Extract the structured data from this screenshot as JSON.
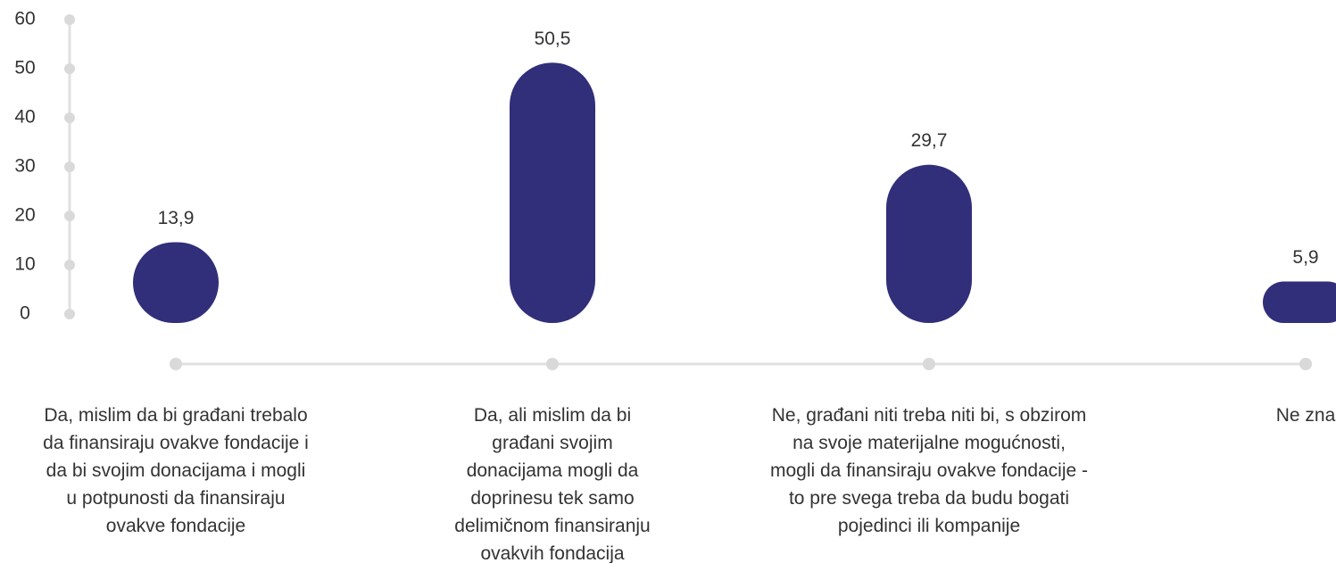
{
  "chart_data": {
    "type": "bar",
    "categories": [
      "Da, mislim da bi građani trebalo\nda finansiraju ovakve fondacije i\nda bi svojim donacijama i mogli\nu potpunosti da finansiraju\novakve fondacije",
      "Da, ali mislim da bi\ngrađani svojim\ndonacijama mogli da\ndoprinesu tek samo\ndelimičnom finansiranju\novakvih fondacija",
      "Ne, građani niti treba niti bi, s obzirom\nna svoje materijalne mogućnosti,\nmogli da finansiraju ovakve fondacije -\nto pre svega treba da budu bogati\npojedinci ili kompanije",
      "Ne zna"
    ],
    "values": [
      13.9,
      50.5,
      29.7,
      5.9
    ],
    "value_labels": [
      "13,9",
      "50,5",
      "29,7",
      "5,9"
    ],
    "color": "#312e7a",
    "ylim": [
      0,
      60
    ],
    "yticks": [
      0,
      10,
      20,
      30,
      40,
      50,
      60
    ]
  }
}
